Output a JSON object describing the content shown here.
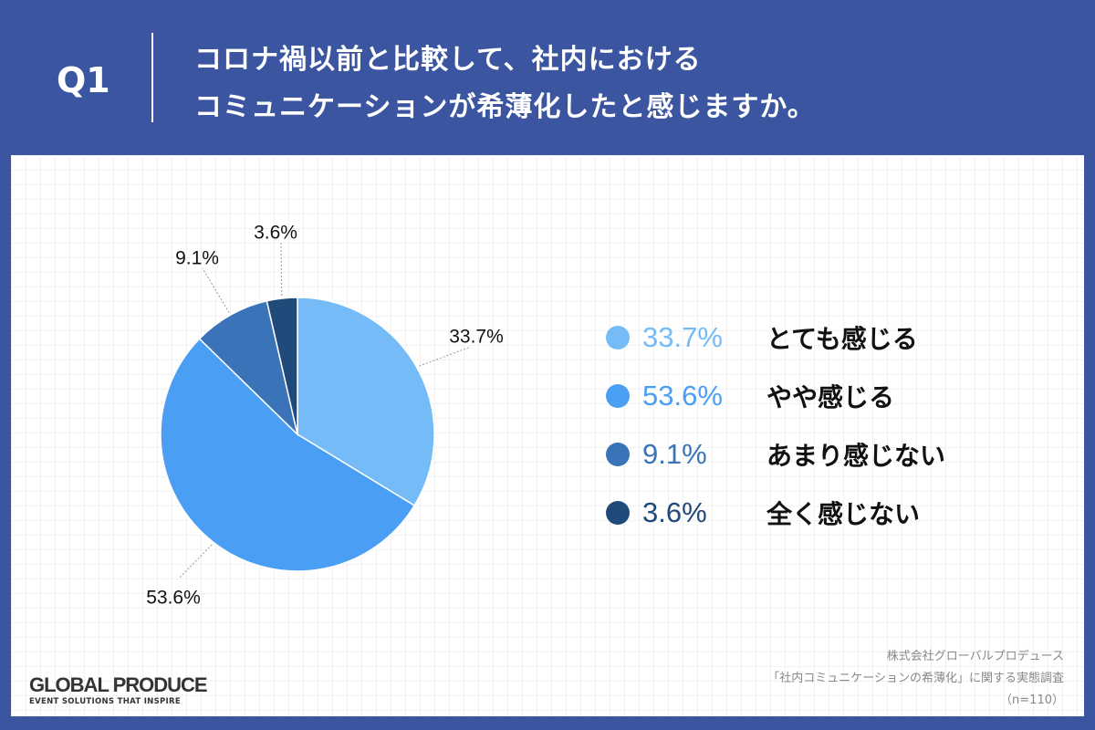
{
  "header": {
    "question_no": "Q1",
    "title_line1": "コロナ禍以前と比較して、社内における",
    "title_line2": "コミュニケーションが希薄化したと感じますか。"
  },
  "chart_data": {
    "type": "pie",
    "slices": [
      {
        "label": "とても感じる",
        "value": 33.7,
        "display": "33.7%",
        "color": "#74bbf8"
      },
      {
        "label": "やや感じる",
        "value": 53.6,
        "display": "53.6%",
        "color": "#4a9ff5"
      },
      {
        "label": "あまり感じない",
        "value": 9.1,
        "display": "9.1%",
        "color": "#3a73b8"
      },
      {
        "label": "全く感じない",
        "value": 3.6,
        "display": "3.6%",
        "color": "#1f4a7a"
      }
    ],
    "start": "top",
    "direction": "clockwise",
    "legend": "right"
  },
  "footer": {
    "logo_main": "GLOBAL PRODUCE",
    "logo_sub": "EVENT SOLUTIONS THAT INSPIRE",
    "source_line1": "株式会社グローバルプロデュース",
    "source_line2": "「社内コミュニケーションの希薄化」に関する実態調査",
    "sample": "（n=110）"
  }
}
